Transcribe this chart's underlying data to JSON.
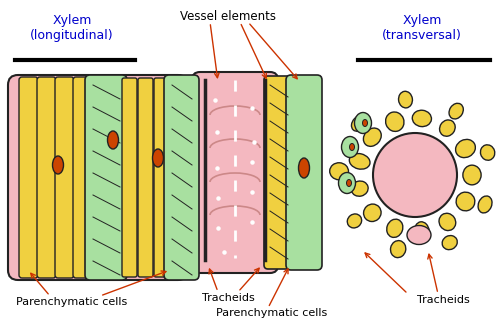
{
  "title_left": "Xylem\n(longitudinal)",
  "title_right": "Xylem\n(transversal)",
  "label_vessel": "Vessel elements",
  "label_parenchyma_left": "Parenchymatic cells",
  "label_tracheids_mid": "Tracheids",
  "label_parenchyma_mid": "Parenchymatic cells",
  "label_tracheids_right": "Tracheids",
  "title_color": "#0000cc",
  "label_color": "#000000",
  "arrow_color": "#cc3300",
  "bg_color": "#ffffff",
  "pink": "#f4b8c0",
  "yellow": "#f0d040",
  "green": "#a8e0a0",
  "dark_outline": "#222222",
  "orange_red": "#cc4400"
}
